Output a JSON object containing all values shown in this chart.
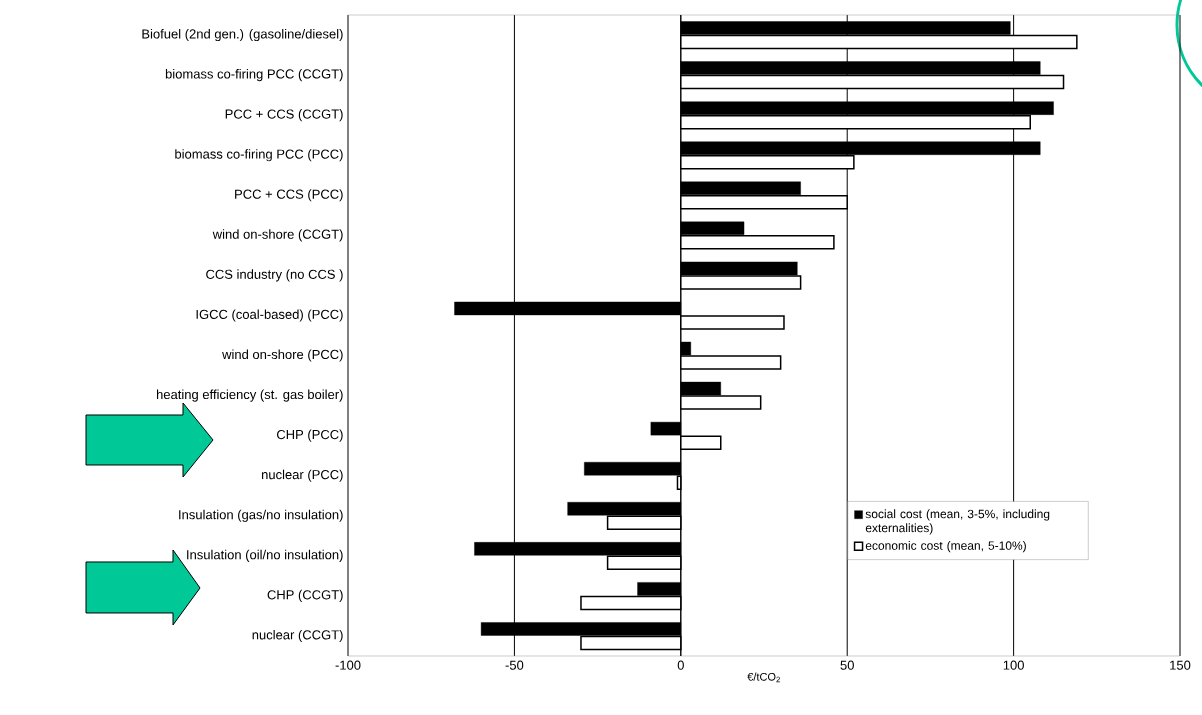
{
  "chart_data": {
    "type": "bar",
    "orientation": "horizontal",
    "xlabel": "€/tCO$_{2}$",
    "categories": [
      "Biofuel (2nd gen.) (gasoline/diesel)",
      "biomass co-firing PCC (CCGT)",
      "PCC + CCS (CCGT)",
      "biomass co-firing PCC (PCC)",
      "PCC + CCS (PCC)",
      "wind on-shore (CCGT)",
      "CCS industry (no CCS )",
      "IGCC (coal-based) (PCC)",
      "wind on-shore (PCC)",
      "heating efficiency (st. gas boiler)",
      "CHP (PCC)",
      "nuclear (PCC)",
      "Insulation (gas/no insulation)",
      "Insulation (oil/no insulation)",
      "CHP (CCGT)",
      "nuclear (CCGT)"
    ],
    "series": [
      {
        "name": "social cost (mean, 3-5%, including externalities)",
        "color": "#000000",
        "values": [
          99,
          108,
          112,
          108,
          36,
          19,
          35,
          -68,
          3,
          12,
          -9,
          -29,
          -34,
          -62,
          -13,
          -60
        ]
      },
      {
        "name": "economic cost (mean, 5-10%)",
        "color": "#ffffff",
        "values": [
          119,
          115,
          105,
          52,
          50,
          46,
          36,
          31,
          30,
          24,
          12,
          -1,
          -22,
          -22,
          -30,
          -30
        ]
      }
    ],
    "xlim": [
      -100,
      150
    ],
    "xticks": [
      -100,
      -50,
      0,
      50,
      100,
      150
    ],
    "grid": "x",
    "legend": "bottom right"
  }
}
